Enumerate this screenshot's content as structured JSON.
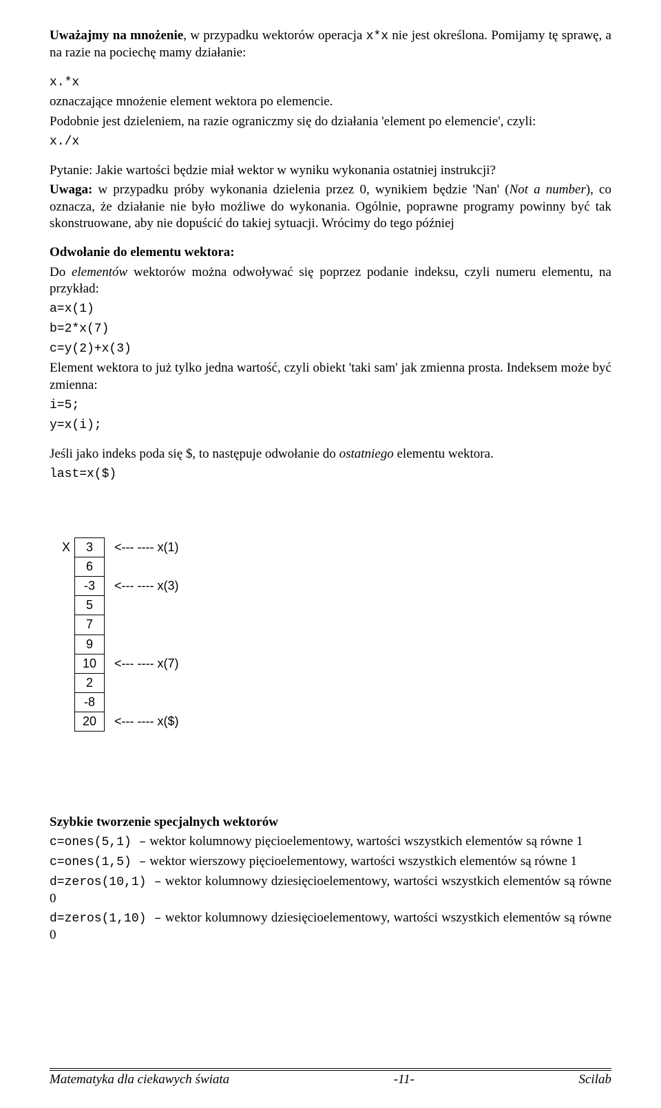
{
  "p1_span1": "Uważajmy na mnożenie",
  "p1_span2": ", w przypadku wektorów operacja ",
  "p1_code1": "x*x",
  "p1_span3": " nie jest określona. Pomijamy tę sprawę, a na razie na pociechę mamy działanie:",
  "code_mul": "x.*x",
  "p2": "oznaczające mnożenie element wektora po elemencie.",
  "p3": "Podobnie jest dzieleniem, na razie ograniczmy się do działania 'element po elemencie', czyli:",
  "code_div": "x./x",
  "p4": "Pytanie: Jakie wartości będzie miał wektor w wyniku wykonania ostatniej instrukcji?",
  "p5_b": "Uwaga:",
  "p5_a": " w przypadku próby wykonania dzielenia przez 0, wynikiem będzie 'Nan' (",
  "p5_i": "Not a number",
  "p5_c": "), co oznacza, że działanie nie było możliwe do wykonania. Ogólnie, poprawne programy powinny być tak skonstruowane, aby nie dopuścić do takiej sytuacji. Wrócimy do tego później",
  "h_odw": "Odwołanie do elementu wektora:",
  "p6_a": "Do ",
  "p6_i": "elementów",
  "p6_b": " wektorów można odwoływać się poprzez podanie indeksu, czyli numeru elementu, na przykład:",
  "code_a1": "a=x(1)",
  "code_a2": "b=2*x(7)",
  "code_a3": "c=y(2)+x(3)",
  "p7": "Element wektora to już tylko jedna wartość, czyli obiekt 'taki sam' jak zmienna prosta. Indeksem może być zmienna:",
  "code_i1": "i=5;",
  "code_i2": "y=x(i);",
  "p8_a": "Jeśli jako indeks poda się $, to następuje odwołanie do ",
  "p8_i": "ostatniego",
  "p8_b": " elementu wektora.",
  "code_last": "last=x($)",
  "vec_label": "X",
  "vec": [
    "3",
    "6",
    "-3",
    "5",
    "7",
    "9",
    "10",
    "2",
    "-8",
    "20"
  ],
  "vnote1": "<--- ----   x(1)",
  "vnote3": "<--- ----   x(3)",
  "vnote7": "<--- ----   x(7)",
  "vnote10": "<--- ----   x($)",
  "h_szyb": "Szybkie tworzenie specjalnych wektorów",
  "c_ones1": "c=ones(5,1) –",
  "t_ones1": " wektor kolumnowy pięcioelementowy, wartości wszystkich elementów są równe 1",
  "c_ones2": "c=ones(1,5) –",
  "t_ones2": " wektor wierszowy pięcioelementowy, wartości wszystkich elementów są równe 1",
  "c_zer1": "d=zeros(10,1) –",
  "t_zer1a": " wektor kolumnowy dziesięcioelementowy, wartości wszystkich elementów są równe 0",
  "c_zer2": "d=zeros(1,10) –",
  "t_zer2a": " wektor kolumnowy dziesięcioelementowy, wartości wszystkich elementów są równe 0",
  "footer_left": "Matematyka dla ciekawych świata",
  "footer_center": "-11-",
  "footer_right": "Scilab"
}
